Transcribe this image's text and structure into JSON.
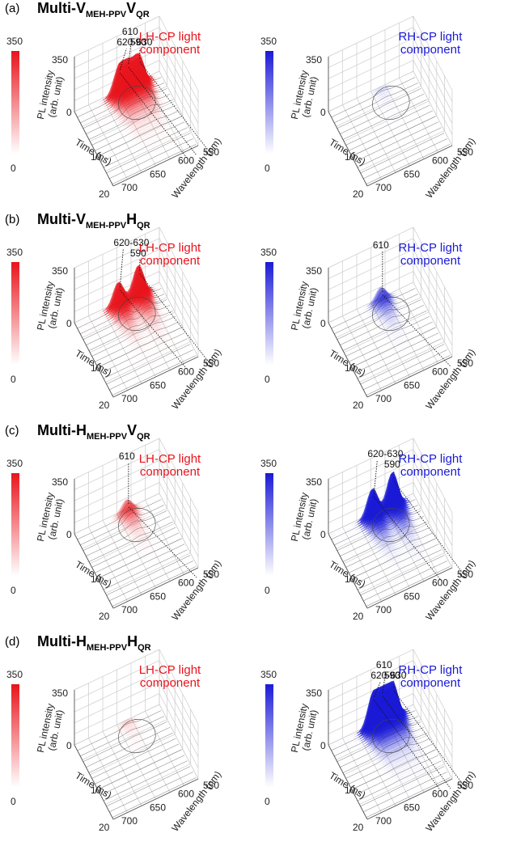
{
  "chart_data": [
    {
      "type": "surface3d",
      "panel_label": "(a)",
      "title_parts": [
        "Multi-V",
        "MEH-PPV",
        "V",
        "QR"
      ],
      "panels": [
        {
          "component_label": [
            "LH-CP light",
            "component"
          ],
          "color": "#e8141c",
          "colorbar": {
            "max": "350",
            "min": "0"
          },
          "z_tick": "350",
          "z_zero": "0",
          "peaks": [
            {
              "label": "590",
              "wavelength": 590,
              "intensity": 260
            },
            {
              "label": "610",
              "wavelength": 610,
              "intensity": 210
            },
            {
              "label": "620-630",
              "wavelength": 625,
              "intensity": 200
            }
          ],
          "peak_intensity": 260
        },
        {
          "component_label": [
            "RH-CP light",
            "component"
          ],
          "color": "#1a1ad6",
          "colorbar": {
            "max": "350",
            "min": "0"
          },
          "z_tick": "350",
          "z_zero": "0",
          "peaks": [],
          "peak_intensity": 20
        }
      ]
    },
    {
      "type": "surface3d",
      "panel_label": "(b)",
      "title_parts": [
        "Multi-V",
        "MEH-PPV",
        "H",
        "QR"
      ],
      "panels": [
        {
          "component_label": [
            "LH-CP light",
            "component"
          ],
          "color": "#e8141c",
          "colorbar": {
            "max": "350",
            "min": "0"
          },
          "z_tick": "350",
          "z_zero": "0",
          "peaks": [
            {
              "label": "590",
              "wavelength": 590,
              "intensity": 265
            },
            {
              "label": "620-630",
              "wavelength": 625,
              "intensity": 200
            }
          ],
          "peak_intensity": 265
        },
        {
          "component_label": [
            "RH-CP light",
            "component"
          ],
          "color": "#1a1ad6",
          "colorbar": {
            "max": "350",
            "min": "0"
          },
          "z_tick": "350",
          "z_zero": "0",
          "peaks": [
            {
              "label": "610",
              "wavelength": 610,
              "intensity": 120
            }
          ],
          "peak_intensity": 120
        }
      ]
    },
    {
      "type": "surface3d",
      "panel_label": "(c)",
      "title_parts": [
        "Multi-H",
        "MEH-PPV",
        "V",
        "QR"
      ],
      "panels": [
        {
          "component_label": [
            "LH-CP light",
            "component"
          ],
          "color": "#e8141c",
          "colorbar": {
            "max": "350",
            "min": "0"
          },
          "z_tick": "350",
          "z_zero": "0",
          "peaks": [
            {
              "label": "610",
              "wavelength": 610,
              "intensity": 110
            }
          ],
          "peak_intensity": 110
        },
        {
          "component_label": [
            "RH-CP light",
            "component"
          ],
          "color": "#1a1ad6",
          "colorbar": {
            "max": "350",
            "min": "0"
          },
          "z_tick": "350",
          "z_zero": "0",
          "peaks": [
            {
              "label": "590",
              "wavelength": 590,
              "intensity": 300
            },
            {
              "label": "620-630",
              "wavelength": 625,
              "intensity": 240
            }
          ],
          "peak_intensity": 300
        }
      ]
    },
    {
      "type": "surface3d",
      "panel_label": "(d)",
      "title_parts": [
        "Multi-H",
        "MEH-PPV",
        "H",
        "QR"
      ],
      "panels": [
        {
          "component_label": [
            "LH-CP light",
            "component"
          ],
          "color": "#e8141c",
          "colorbar": {
            "max": "350",
            "min": "0"
          },
          "z_tick": "350",
          "z_zero": "0",
          "peaks": [],
          "peak_intensity": 25
        },
        {
          "component_label": [
            "RH-CP light",
            "component"
          ],
          "color": "#1a1ad6",
          "colorbar": {
            "max": "350",
            "min": "0"
          },
          "z_tick": "350",
          "z_zero": "0",
          "peaks": [
            {
              "label": "590",
              "wavelength": 590,
              "intensity": 300
            },
            {
              "label": "610",
              "wavelength": 610,
              "intensity": 280
            },
            {
              "label": "620-630",
              "wavelength": 625,
              "intensity": 240
            }
          ],
          "peak_intensity": 300
        }
      ]
    }
  ],
  "axes": {
    "z_label_lines": [
      "PL intensity",
      "(arb. unit)"
    ],
    "time_label": "Time (ns)",
    "time_ticks": [
      "10",
      "20"
    ],
    "wavelength_label": "Wavelength (nm)",
    "wavelength_ticks": [
      "550",
      "600",
      "650",
      "700"
    ],
    "z_range": [
      0,
      350
    ],
    "time_range": [
      0,
      20
    ],
    "wavelength_range": [
      550,
      700
    ]
  }
}
